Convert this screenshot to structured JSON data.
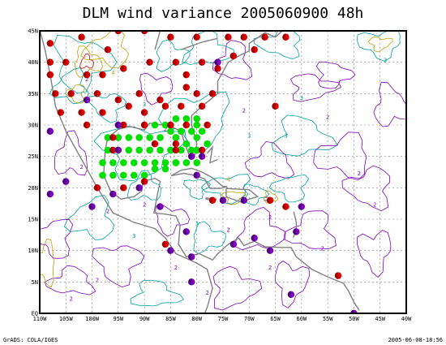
{
  "title": "DLM wind variance 2005060900 48h",
  "footer": {
    "left": "GrADS: COLA/IGES",
    "right": "2005-06-08-18:56"
  },
  "axes": {
    "lat_labels": [
      "EQ",
      "5N",
      "10N",
      "15N",
      "20N",
      "25N",
      "30N",
      "35N",
      "40N",
      "45N"
    ],
    "lon_labels": [
      "110W",
      "105W",
      "100W",
      "95W",
      "90W",
      "85W",
      "80W",
      "75W",
      "70W",
      "65W",
      "60W",
      "55W",
      "50W",
      "45W",
      "40W"
    ],
    "lon_range": [
      -110,
      -40
    ],
    "lat_range": [
      0,
      45
    ]
  },
  "colors": {
    "frame": "#000000",
    "coast": "#808080",
    "grid": "#808080",
    "contour_2": "#8000c0",
    "contour_3": "#00a0a0",
    "contour_4": "#c0a000",
    "contour_5": "#e00000",
    "obs_red": "#e00000",
    "obs_purple": "#8000c0",
    "obs_green": "#00e000"
  },
  "contour_labels": [
    "2",
    "3",
    "4"
  ],
  "red_points": [
    [
      -108,
      43
    ],
    [
      -102,
      44
    ],
    [
      -95,
      45
    ],
    [
      -90,
      45
    ],
    [
      -85,
      44
    ],
    [
      -80,
      44
    ],
    [
      -74,
      44
    ],
    [
      -71,
      44
    ],
    [
      -67,
      44
    ],
    [
      -63,
      44
    ],
    [
      -108,
      40
    ],
    [
      -105,
      40
    ],
    [
      -101,
      38
    ],
    [
      -98,
      38
    ],
    [
      -94,
      39
    ],
    [
      -89,
      40
    ],
    [
      -84,
      40
    ],
    [
      -79,
      40
    ],
    [
      -76,
      39
    ],
    [
      -73,
      41
    ],
    [
      -69,
      42
    ],
    [
      -107,
      35
    ],
    [
      -104,
      35
    ],
    [
      -99,
      35
    ],
    [
      -95,
      34
    ],
    [
      -91,
      35
    ],
    [
      -87,
      34
    ],
    [
      -82,
      36
    ],
    [
      -80,
      35
    ],
    [
      -77,
      35
    ],
    [
      -106,
      32
    ],
    [
      -102,
      32
    ],
    [
      -98,
      32
    ],
    [
      -93,
      33
    ],
    [
      -90,
      32
    ],
    [
      -86,
      33
    ],
    [
      -83,
      33
    ],
    [
      -79,
      33
    ],
    [
      -65,
      33
    ],
    [
      -101,
      30
    ],
    [
      -94,
      30
    ],
    [
      -90,
      30
    ],
    [
      -85,
      30
    ],
    [
      -82,
      30
    ],
    [
      -78,
      30
    ],
    [
      -96,
      28
    ],
    [
      -88,
      27
    ],
    [
      -84,
      27
    ],
    [
      -79,
      26
    ],
    [
      -96,
      26
    ],
    [
      -84,
      26
    ],
    [
      -81,
      25
    ],
    [
      -99,
      20
    ],
    [
      -94,
      20
    ],
    [
      -90,
      21
    ],
    [
      -77,
      18
    ],
    [
      -66,
      18
    ],
    [
      -63,
      17
    ],
    [
      -86,
      11
    ],
    [
      -53,
      6
    ],
    [
      -108,
      38
    ],
    [
      -97,
      42
    ],
    [
      -82,
      38
    ]
  ],
  "purple_points": [
    [
      -76,
      40
    ],
    [
      -101,
      34
    ],
    [
      -108,
      29
    ],
    [
      -95,
      26
    ],
    [
      -81,
      25
    ],
    [
      -80,
      22
    ],
    [
      -105,
      21
    ],
    [
      -108,
      19
    ],
    [
      -100,
      17
    ],
    [
      -96,
      19
    ],
    [
      -91,
      20
    ],
    [
      -87,
      17
    ],
    [
      -75,
      18
    ],
    [
      -71,
      18
    ],
    [
      -60,
      17
    ],
    [
      -82,
      13
    ],
    [
      -73,
      11
    ],
    [
      -69,
      12
    ],
    [
      -61,
      13
    ],
    [
      -81,
      9
    ],
    [
      -85,
      10
    ],
    [
      -81,
      5
    ],
    [
      -62,
      3
    ],
    [
      -66,
      10
    ],
    [
      -50,
      0
    ],
    [
      -95,
      30
    ],
    [
      -79,
      25
    ]
  ],
  "green_points": [
    [
      -97,
      28
    ],
    [
      -95,
      28
    ],
    [
      -93,
      28
    ],
    [
      -91,
      28
    ],
    [
      -89,
      28
    ],
    [
      -87,
      28
    ],
    [
      -85,
      29
    ],
    [
      -83,
      29
    ],
    [
      -81,
      29
    ],
    [
      -80,
      28
    ],
    [
      -97,
      26
    ],
    [
      -95,
      26
    ],
    [
      -93,
      26
    ],
    [
      -91,
      26
    ],
    [
      -89,
      26
    ],
    [
      -87,
      26
    ],
    [
      -85,
      26
    ],
    [
      -83,
      26
    ],
    [
      -81,
      26
    ],
    [
      -98,
      24
    ],
    [
      -96,
      24
    ],
    [
      -94,
      24
    ],
    [
      -92,
      24
    ],
    [
      -90,
      24
    ],
    [
      -88,
      24
    ],
    [
      -86,
      24
    ],
    [
      -84,
      24
    ],
    [
      -82,
      24
    ],
    [
      -80,
      24
    ],
    [
      -98,
      22
    ],
    [
      -96,
      22
    ],
    [
      -94,
      22
    ],
    [
      -92,
      22
    ],
    [
      -90,
      22
    ],
    [
      -88,
      23
    ],
    [
      -86,
      23
    ],
    [
      -84,
      24
    ],
    [
      -86,
      30
    ],
    [
      -84,
      31
    ],
    [
      -82,
      31
    ],
    [
      -80,
      31
    ],
    [
      -79,
      29
    ],
    [
      -78,
      27
    ],
    [
      -80,
      26
    ],
    [
      -82,
      27
    ],
    [
      -84,
      28
    ],
    [
      -80,
      30
    ],
    [
      -88,
      30
    ]
  ]
}
